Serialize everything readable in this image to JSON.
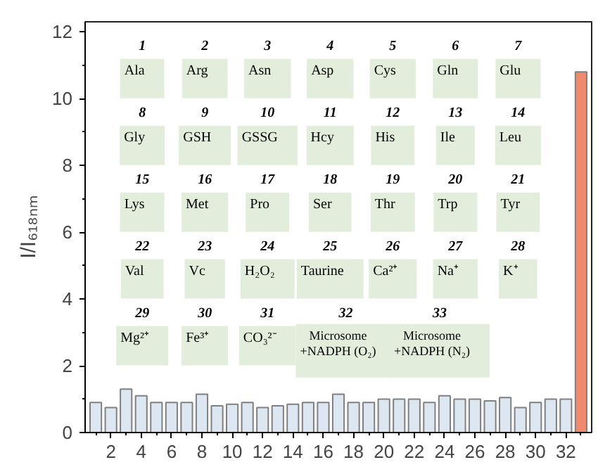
{
  "chart_data": {
    "type": "bar",
    "ylabel": "I/I₆₁₈ₙₘ",
    "x": [
      1,
      2,
      3,
      4,
      5,
      6,
      7,
      8,
      9,
      10,
      11,
      12,
      13,
      14,
      15,
      16,
      17,
      18,
      19,
      20,
      21,
      22,
      23,
      24,
      25,
      26,
      27,
      28,
      29,
      30,
      31,
      32,
      33
    ],
    "values": [
      0.9,
      0.75,
      1.3,
      1.1,
      0.9,
      0.9,
      0.9,
      1.15,
      0.8,
      0.85,
      0.9,
      0.75,
      0.8,
      0.85,
      0.9,
      0.9,
      1.15,
      0.9,
      0.9,
      1.0,
      1.0,
      1.0,
      0.9,
      1.1,
      1.0,
      1.0,
      0.95,
      1.05,
      0.75,
      0.9,
      1.0,
      1.0,
      10.8
    ],
    "colors": [
      "#dde7f1",
      "#dde7f1",
      "#dde7f1",
      "#dde7f1",
      "#dde7f1",
      "#dde7f1",
      "#dde7f1",
      "#dde7f1",
      "#dde7f1",
      "#dde7f1",
      "#dde7f1",
      "#dde7f1",
      "#dde7f1",
      "#dde7f1",
      "#dde7f1",
      "#dde7f1",
      "#dde7f1",
      "#dde7f1",
      "#dde7f1",
      "#dde7f1",
      "#dde7f1",
      "#dde7f1",
      "#dde7f1",
      "#dde7f1",
      "#dde7f1",
      "#dde7f1",
      "#dde7f1",
      "#dde7f1",
      "#dde7f1",
      "#dde7f1",
      "#dde7f1",
      "#dde7f1",
      "#ef8a6c"
    ],
    "xlim": [
      0.3,
      33.7
    ],
    "xticks": [
      2,
      4,
      6,
      8,
      10,
      12,
      14,
      16,
      18,
      20,
      22,
      24,
      26,
      28,
      30,
      32
    ],
    "ylim": [
      0,
      12.3
    ],
    "yticks": [
      0,
      2,
      4,
      6,
      8,
      10,
      12
    ],
    "grid": false,
    "annotations": [
      "1",
      "Ala",
      "2",
      "Arg",
      "3",
      "Asn",
      "4",
      "Asp",
      "5",
      "Cys",
      "6",
      "Gln",
      "7",
      "Glu",
      "8",
      "Gly",
      "9",
      "GSH",
      "10",
      "GSSG",
      "11",
      "Hcy",
      "12",
      "His",
      "13",
      "Ile",
      "14",
      "Leu",
      "15",
      "Lys",
      "16",
      "Met",
      "17",
      "Pro",
      "18",
      "Ser",
      "19",
      "Thr",
      "20",
      "Trp",
      "21",
      "Tyr",
      "22",
      "Val",
      "23",
      "Vc",
      "24",
      "H₂O₂",
      "25",
      "Taurine",
      "26",
      "Ca²⁺",
      "27",
      "Na⁺",
      "28",
      "K⁺",
      "29",
      "Mg²⁺",
      "30",
      "Fe³⁺",
      "31",
      "CO₃²⁻",
      "32",
      "Microsome\n+NADPH (O₂)",
      "33",
      "Microsome\n+NADPH (N₂)"
    ]
  }
}
